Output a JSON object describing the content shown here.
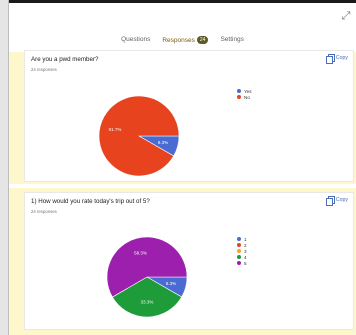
{
  "tabs": {
    "questions": "Questions",
    "responses": "Responses",
    "responses_count": "24",
    "settings": "Settings"
  },
  "icons": {
    "expand": "expand-icon",
    "copy": "copy-icon"
  },
  "colors": {
    "blue": "#4a6bd1",
    "red": "#e8431f",
    "orange": "#f5a623",
    "green": "#1e9c3a",
    "purple": "#9c1fae",
    "accent": "#c9a227",
    "strip": "#fff7cc"
  },
  "question1": {
    "title": "Are you a pwd member?",
    "responses": "24 responses",
    "copy_label": "Copy",
    "legend": [
      {
        "label": "Yes",
        "color": "#4a6bd1"
      },
      {
        "label": "No",
        "color": "#e8431f"
      }
    ]
  },
  "question2": {
    "title": "1) How would you rate today's trip out of 5?",
    "responses": "24 responses",
    "copy_label": "Copy",
    "legend": [
      {
        "label": "1",
        "color": "#4a6bd1"
      },
      {
        "label": "2",
        "color": "#e8431f"
      },
      {
        "label": "3",
        "color": "#f5a623"
      },
      {
        "label": "4",
        "color": "#1e9c3a"
      },
      {
        "label": "5",
        "color": "#9c1fae"
      }
    ]
  },
  "chart_data": [
    {
      "type": "pie",
      "title": "Are you a pwd member?",
      "categories": [
        "Yes",
        "No"
      ],
      "values": [
        8.3,
        91.7
      ],
      "labels": [
        "8.3%",
        "91.7%"
      ],
      "colors": [
        "#4a6bd1",
        "#e8431f"
      ],
      "legend": "right"
    },
    {
      "type": "pie",
      "title": "1) How would you rate today's trip out of 5?",
      "categories": [
        "1",
        "2",
        "3",
        "4",
        "5"
      ],
      "values": [
        8.3,
        0,
        0,
        33.3,
        58.3
      ],
      "labels": [
        "8.3%",
        "",
        "",
        "33.3%",
        "58.3%"
      ],
      "colors": [
        "#4a6bd1",
        "#e8431f",
        "#f5a623",
        "#1e9c3a",
        "#9c1fae"
      ],
      "legend": "right"
    }
  ]
}
